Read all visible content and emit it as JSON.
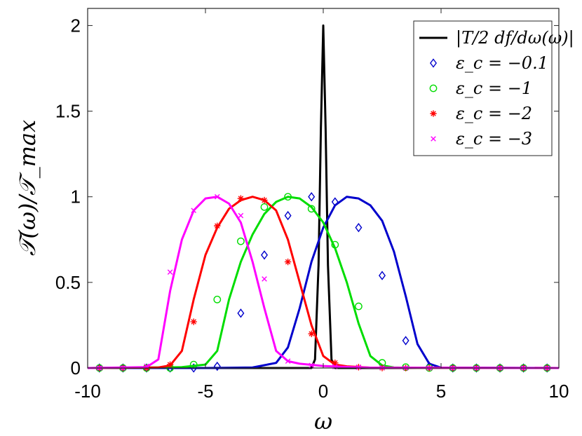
{
  "chart_data": {
    "type": "line",
    "xlabel": "ω",
    "ylabel": "𝒯(ω)/𝒯_max",
    "xlim": [
      -10,
      10
    ],
    "ylim": [
      0,
      2.1
    ],
    "x_ticks": [
      -10,
      -5,
      0,
      5,
      10
    ],
    "x_tick_labels": [
      "-10",
      "-5",
      "0",
      "5",
      "10"
    ],
    "y_ticks": [
      0,
      0.5,
      1,
      1.5,
      2
    ],
    "y_tick_labels": [
      "0",
      "0.5",
      "1",
      "1.5",
      "2"
    ],
    "grid": false,
    "legend_position": "top-right",
    "series": [
      {
        "name": "|T/2 df/dω(ω)|",
        "color": "#000000",
        "marker": "none",
        "style": "line",
        "x": [
          -10,
          -0.5,
          -0.35,
          -0.2,
          -0.1,
          0,
          0.1,
          0.2,
          0.35,
          0.5,
          10
        ],
        "y": [
          0,
          0,
          0.05,
          0.6,
          1.4,
          2.0,
          1.4,
          0.6,
          0.05,
          0,
          0
        ]
      },
      {
        "name": "ε_c = −0.1",
        "color": "#0000cc",
        "marker": "diamond",
        "style": "line+markers",
        "x": [
          -10,
          -5,
          -3,
          -2,
          -1.5,
          -1,
          -0.5,
          0,
          0.5,
          1,
          1.5,
          2,
          2.5,
          3,
          3.5,
          4,
          4.5,
          5,
          10
        ],
        "y": [
          0,
          0,
          0.003,
          0.03,
          0.12,
          0.35,
          0.62,
          0.82,
          0.95,
          1.0,
          0.99,
          0.95,
          0.86,
          0.68,
          0.42,
          0.14,
          0.025,
          0.002,
          0
        ],
        "markers_x": [
          -9.5,
          -8.5,
          -7.5,
          -6.5,
          -5.5,
          -4.5,
          -3.5,
          -2.5,
          -1.5,
          -0.5,
          0.5,
          1.5,
          2.5,
          3.5,
          4.5,
          5.5,
          6.5,
          7.5,
          8.5,
          9.5
        ],
        "markers_y": [
          0,
          0,
          0,
          0,
          0,
          0.01,
          0.32,
          0.66,
          0.89,
          1.0,
          0.97,
          0.82,
          0.54,
          0.16,
          0.01,
          0,
          0,
          0,
          0,
          0
        ]
      },
      {
        "name": "ε_c = −1",
        "color": "#00dd00",
        "marker": "circle",
        "style": "line+markers",
        "x": [
          -10,
          -6,
          -5,
          -4.5,
          -4,
          -3.5,
          -3,
          -2.5,
          -2,
          -1.5,
          -1,
          -0.5,
          0,
          0.5,
          1,
          1.5,
          2,
          2.5,
          3,
          4,
          10
        ],
        "y": [
          0,
          0.005,
          0.02,
          0.1,
          0.4,
          0.62,
          0.78,
          0.9,
          0.97,
          1.0,
          0.99,
          0.94,
          0.85,
          0.7,
          0.5,
          0.26,
          0.07,
          0.015,
          0.003,
          0,
          0
        ],
        "markers_x": [
          -9.5,
          -8.5,
          -7.5,
          -6.5,
          -5.5,
          -4.5,
          -3.5,
          -2.5,
          -1.5,
          -0.5,
          0.5,
          1.5,
          2.5,
          3.5,
          4.5,
          5.5,
          6.5,
          7.5,
          8.5,
          9.5
        ],
        "markers_y": [
          0,
          0,
          0,
          0,
          0.02,
          0.4,
          0.74,
          0.94,
          1.0,
          0.93,
          0.72,
          0.36,
          0.03,
          0.005,
          0,
          0,
          0,
          0,
          0,
          0
        ]
      },
      {
        "name": "ε_c = −2",
        "color": "#ff0000",
        "marker": "star",
        "style": "line+markers",
        "x": [
          -10,
          -7,
          -6.5,
          -6,
          -5.5,
          -5,
          -4.5,
          -4,
          -3.5,
          -3,
          -2.5,
          -2,
          -1.5,
          -1,
          -0.5,
          0,
          0.5,
          1,
          2,
          10
        ],
        "y": [
          0,
          0.003,
          0.015,
          0.1,
          0.4,
          0.66,
          0.82,
          0.93,
          0.98,
          1.0,
          0.98,
          0.92,
          0.75,
          0.5,
          0.25,
          0.07,
          0.02,
          0.01,
          0.002,
          0
        ],
        "markers_x": [
          -9.5,
          -8.5,
          -7.5,
          -6.5,
          -5.5,
          -4.5,
          -3.5,
          -2.5,
          -1.5,
          -0.5,
          0.5,
          1.5,
          2.5,
          3.5,
          4.5,
          5.5,
          6.5,
          7.5,
          8.5,
          9.5
        ],
        "markers_y": [
          0,
          0,
          0,
          0.02,
          0.27,
          0.83,
          0.99,
          0.98,
          0.62,
          0.2,
          0.03,
          0.005,
          0,
          0,
          0,
          0,
          0,
          0,
          0,
          0
        ]
      },
      {
        "name": "ε_c = −3",
        "color": "#ff00ff",
        "marker": "x",
        "style": "line+markers",
        "x": [
          -10,
          -7.5,
          -7,
          -6.5,
          -6,
          -5.5,
          -5,
          -4.5,
          -4,
          -3.5,
          -3,
          -2.5,
          -2,
          -1.5,
          -1,
          0,
          1,
          2,
          10
        ],
        "y": [
          0,
          0.005,
          0.05,
          0.45,
          0.75,
          0.92,
          0.99,
          1.0,
          0.96,
          0.85,
          0.62,
          0.35,
          0.1,
          0.04,
          0.025,
          0.012,
          0.006,
          0.002,
          0
        ],
        "markers_x": [
          -9.5,
          -8.5,
          -7.5,
          -6.5,
          -5.5,
          -4.5,
          -3.5,
          -2.5,
          -1.5,
          -0.5,
          0.5,
          1.5,
          2.5,
          3.5,
          4.5,
          5.5,
          6.5,
          7.5,
          8.5,
          9.5
        ],
        "markers_y": [
          0,
          0,
          0.01,
          0.56,
          0.92,
          1.0,
          0.89,
          0.52,
          0.04,
          0.015,
          0.008,
          0.004,
          0.002,
          0,
          0,
          0,
          0,
          0,
          0,
          0
        ]
      }
    ]
  }
}
